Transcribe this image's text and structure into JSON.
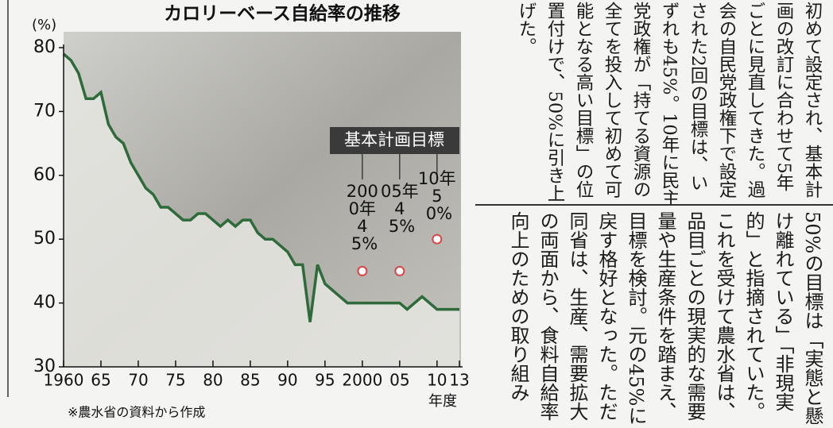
{
  "chart_data": {
    "type": "area",
    "title": "カロリーベース自給率の推移",
    "y_label": "(%)",
    "x_label": "年度",
    "source": "※農水省の資料から作成",
    "x": [
      1960,
      1961,
      1962,
      1963,
      1964,
      1965,
      1966,
      1967,
      1968,
      1969,
      1970,
      1971,
      1972,
      1973,
      1974,
      1975,
      1976,
      1977,
      1978,
      1979,
      1980,
      1981,
      1982,
      1983,
      1984,
      1985,
      1986,
      1987,
      1988,
      1989,
      1990,
      1991,
      1992,
      1993,
      1994,
      1995,
      1996,
      1997,
      1998,
      1999,
      2000,
      2001,
      2002,
      2003,
      2004,
      2005,
      2006,
      2007,
      2008,
      2009,
      2010,
      2011,
      2012,
      2013
    ],
    "values": [
      79,
      78,
      76,
      72,
      72,
      73,
      68,
      66,
      65,
      62,
      60,
      58,
      57,
      55,
      55,
      54,
      53,
      53,
      54,
      54,
      53,
      52,
      53,
      52,
      53,
      53,
      51,
      50,
      50,
      49,
      48,
      46,
      46,
      37,
      46,
      43,
      42,
      41,
      40,
      40,
      40,
      40,
      40,
      40,
      40,
      40,
      39,
      40,
      41,
      40,
      39,
      39,
      39,
      39
    ],
    "color": "#2f6b3a",
    "xlim": [
      1960,
      2013
    ],
    "ylim": [
      30,
      80
    ],
    "yticks": [
      30,
      40,
      50,
      60,
      70,
      80
    ],
    "xticks": [
      1960,
      {
        "value": 1965,
        "label": "65"
      },
      {
        "value": 1970,
        "label": "70"
      },
      {
        "value": 1975,
        "label": "75"
      },
      {
        "value": 1980,
        "label": "80"
      },
      {
        "value": 1985,
        "label": "85"
      },
      {
        "value": 1990,
        "label": "90"
      },
      {
        "value": 1995,
        "label": "95"
      },
      2000,
      {
        "value": 2005,
        "label": "05"
      },
      {
        "value": 2010,
        "label": "10"
      },
      {
        "value": 2013,
        "label": "13"
      }
    ],
    "targets": {
      "label": "基本計画目標",
      "x": [
        2000,
        2005,
        2010
      ],
      "values": [
        45,
        45,
        50
      ],
      "year_labels": [
        "2000年",
        "05年",
        "10年"
      ],
      "value_labels": [
        "45%",
        "45%",
        "50%"
      ],
      "color": "#d8464a"
    }
  },
  "article": {
    "top_columns": [
      "初めて設定され、基本計",
      "画の改訂に合わせて5年",
      "ごとに見直してきた。過",
      "会の自民党政権下で設定",
      "された2回の目標は、い",
      "ずれも45%。10年に民主",
      "党政権が「持てる資源の",
      "全てを投入して初めて可",
      "能となる高い目標」の位",
      "置付けで、50%に引き上",
      "げた。"
    ],
    "bottom_columns": [
      "50%の目標は「実態と懸",
      "け離れている」「非現実",
      "的」と指摘されていた。",
      "これを受けて農水省は、",
      "品目ごとの現実的な需要",
      "量や生産条件を踏まえ、",
      "目標を検討。元の45%に",
      "戻す格好となった。ただ",
      "同省は、生産、需要拡大",
      "の両面から、食料自給率",
      "向上のための取り組み"
    ]
  }
}
